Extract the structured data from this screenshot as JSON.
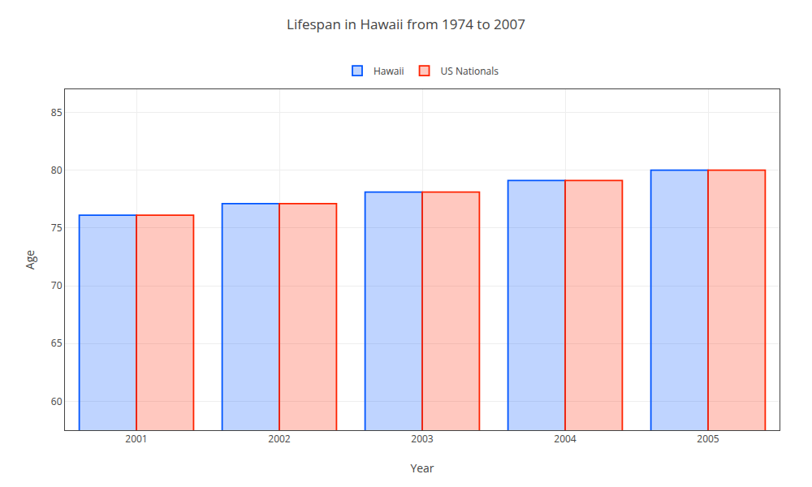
{
  "chart_data": {
    "type": "bar",
    "title": "Lifespan in Hawaii from 1974 to 2007",
    "xlabel": "Year",
    "ylabel": "Age",
    "categories": [
      "2001",
      "2002",
      "2003",
      "2004",
      "2005"
    ],
    "series": [
      {
        "name": "Hawaii",
        "color": "#0055ff",
        "values": [
          76.1,
          77.1,
          78.1,
          79.1,
          80.0
        ]
      },
      {
        "name": "US Nationals",
        "color": "#ff2200",
        "values": [
          76.1,
          77.1,
          78.1,
          79.1,
          80.0
        ]
      }
    ],
    "ylim": [
      57.5,
      87
    ],
    "yticks": [
      60,
      65,
      70,
      75,
      80,
      85
    ],
    "grid": true,
    "legend": "top"
  }
}
